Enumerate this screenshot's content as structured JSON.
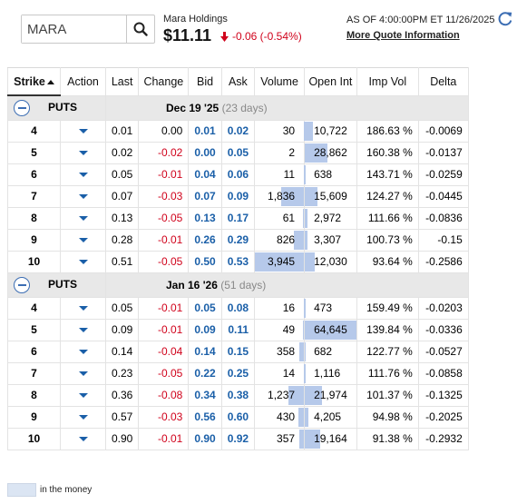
{
  "search": {
    "value": "MARA"
  },
  "quote": {
    "company": "Mara Holdings",
    "price": "$11.11",
    "change": "-0.06 (-0.54%)",
    "as_of": "AS OF 4:00:00PM ET 11/26/2025",
    "more_link": "More Quote Information"
  },
  "columns": [
    "Strike",
    "Action",
    "Last",
    "Change",
    "Bid",
    "Ask",
    "Volume",
    "Open Int",
    "Imp Vol",
    "Delta"
  ],
  "groups": [
    {
      "type_label": "PUTS",
      "expiry": "Dec 19 '25",
      "days": "(23 days)",
      "rows": [
        {
          "strike": "4",
          "last": "0.01",
          "change": "0.00",
          "bid": "0.01",
          "ask": "0.02",
          "volume": "30",
          "open_int": "10,722",
          "imp_vol": "186.63 %",
          "delta": "-0.0069",
          "itm": false
        },
        {
          "strike": "5",
          "last": "0.02",
          "change": "-0.02",
          "bid": "0.00",
          "ask": "0.05",
          "volume": "2",
          "open_int": "28,862",
          "imp_vol": "160.38 %",
          "delta": "-0.0137",
          "itm": false
        },
        {
          "strike": "6",
          "last": "0.05",
          "change": "-0.01",
          "bid": "0.04",
          "ask": "0.06",
          "volume": "11",
          "open_int": "638",
          "imp_vol": "143.71 %",
          "delta": "-0.0259",
          "itm": false
        },
        {
          "strike": "7",
          "last": "0.07",
          "change": "-0.03",
          "bid": "0.07",
          "ask": "0.09",
          "volume": "1,836",
          "open_int": "15,609",
          "imp_vol": "124.27 %",
          "delta": "-0.0445",
          "itm": false
        },
        {
          "strike": "8",
          "last": "0.13",
          "change": "-0.05",
          "bid": "0.13",
          "ask": "0.17",
          "volume": "61",
          "open_int": "2,972",
          "imp_vol": "111.66 %",
          "delta": "-0.0836",
          "itm": false
        },
        {
          "strike": "9",
          "last": "0.28",
          "change": "-0.01",
          "bid": "0.26",
          "ask": "0.29",
          "volume": "826",
          "open_int": "3,307",
          "imp_vol": "100.73 %",
          "delta": "-0.15",
          "itm": false
        },
        {
          "strike": "10",
          "last": "0.51",
          "change": "-0.05",
          "bid": "0.50",
          "ask": "0.53",
          "volume": "3,945",
          "open_int": "12,030",
          "imp_vol": "93.64 %",
          "delta": "-0.2586",
          "itm": false
        }
      ]
    },
    {
      "type_label": "PUTS",
      "expiry": "Jan 16 '26",
      "days": "(51 days)",
      "rows": [
        {
          "strike": "4",
          "last": "0.05",
          "change": "-0.01",
          "bid": "0.05",
          "ask": "0.08",
          "volume": "16",
          "open_int": "473",
          "imp_vol": "159.49 %",
          "delta": "-0.0203",
          "itm": false
        },
        {
          "strike": "5",
          "last": "0.09",
          "change": "-0.01",
          "bid": "0.09",
          "ask": "0.11",
          "volume": "49",
          "open_int": "64,645",
          "imp_vol": "139.84 %",
          "delta": "-0.0336",
          "itm": false
        },
        {
          "strike": "6",
          "last": "0.14",
          "change": "-0.04",
          "bid": "0.14",
          "ask": "0.15",
          "volume": "358",
          "open_int": "682",
          "imp_vol": "122.77 %",
          "delta": "-0.0527",
          "itm": false
        },
        {
          "strike": "7",
          "last": "0.23",
          "change": "-0.05",
          "bid": "0.22",
          "ask": "0.25",
          "volume": "14",
          "open_int": "1,116",
          "imp_vol": "111.76 %",
          "delta": "-0.0858",
          "itm": false
        },
        {
          "strike": "8",
          "last": "0.36",
          "change": "-0.08",
          "bid": "0.34",
          "ask": "0.38",
          "volume": "1,237",
          "open_int": "21,974",
          "imp_vol": "101.37 %",
          "delta": "-0.1325",
          "itm": false
        },
        {
          "strike": "9",
          "last": "0.57",
          "change": "-0.03",
          "bid": "0.56",
          "ask": "0.60",
          "volume": "430",
          "open_int": "4,205",
          "imp_vol": "94.98 %",
          "delta": "-0.2025",
          "itm": false
        },
        {
          "strike": "10",
          "last": "0.90",
          "change": "-0.01",
          "bid": "0.90",
          "ask": "0.92",
          "volume": "357",
          "open_int": "19,164",
          "imp_vol": "91.38 %",
          "delta": "-0.2932",
          "itm": false
        }
      ]
    }
  ],
  "legend": {
    "label": "in the money"
  },
  "colors": {
    "negative": "#d0021b",
    "bid_ask": "#1a5fa8",
    "bar": "#b6c9ea",
    "itm": "#dbe5f3"
  },
  "icons": {
    "search": "search-icon",
    "refresh": "refresh-icon",
    "down_arrow": "arrow-down-icon"
  }
}
